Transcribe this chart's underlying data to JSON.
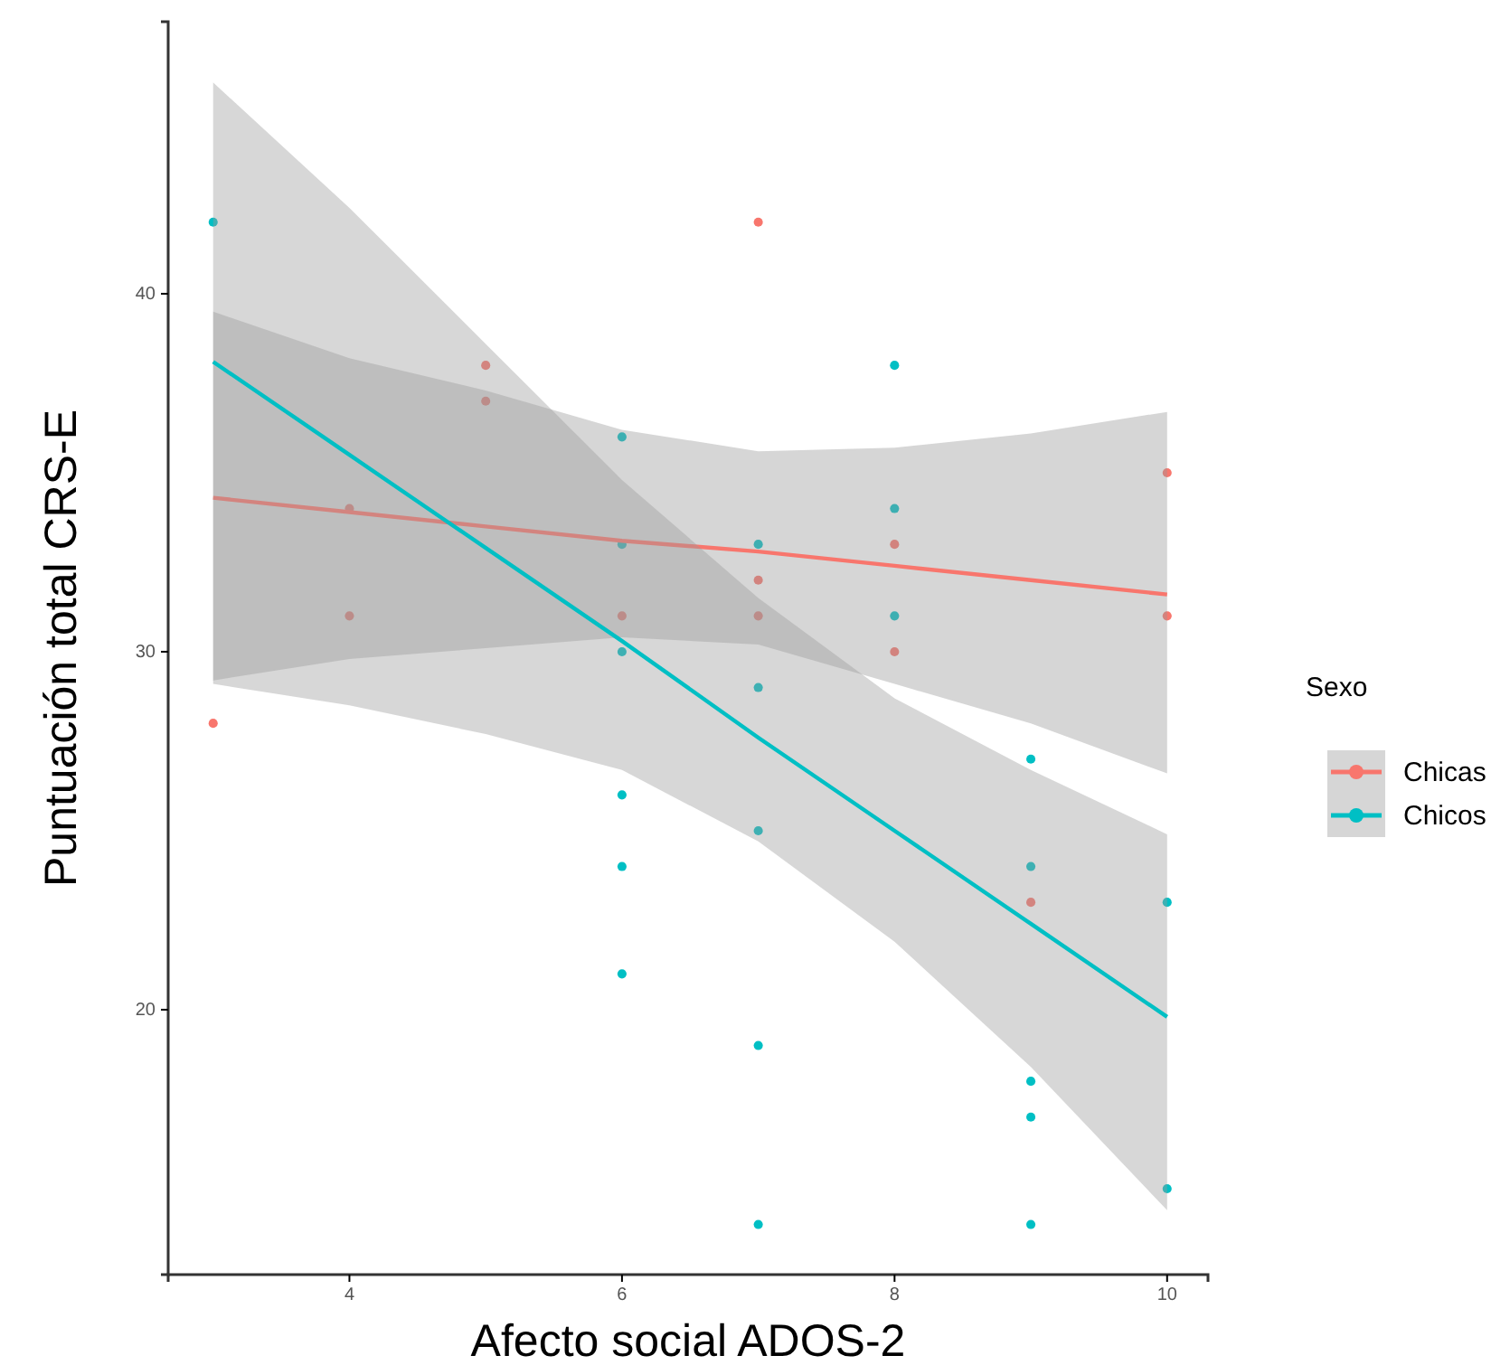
{
  "chart_data": {
    "type": "scatter",
    "xlabel": "Afecto social ADOS-2",
    "ylabel": "Puntuación total CRS-E",
    "legend_title": "Sexo",
    "legend": "right",
    "grid": false,
    "marker": "circle",
    "xlim": [
      2.67,
      10.3
    ],
    "xticks": [
      4,
      6,
      8,
      10
    ],
    "ylim": [
      12.6,
      47.6
    ],
    "yticks": [
      20,
      30,
      40
    ],
    "series": [
      {
        "name": "Chicas",
        "color": "#f8766d",
        "x": [
          3,
          4,
          4,
          5,
          5,
          6,
          7,
          7,
          7,
          8,
          8,
          9,
          10,
          10
        ],
        "values": [
          28,
          34,
          31,
          38,
          37,
          31,
          42,
          32,
          31,
          33,
          30,
          23,
          35,
          31
        ]
      },
      {
        "name": "Chicos",
        "color": "#00bfc4",
        "x": [
          3,
          6,
          6,
          6,
          6,
          6,
          6,
          7,
          7,
          7,
          7,
          7,
          8,
          8,
          8,
          9,
          9,
          9,
          9,
          9,
          10,
          10
        ],
        "values": [
          42,
          36,
          33,
          30,
          26,
          24,
          21,
          33,
          29,
          25,
          19,
          14,
          38,
          34,
          31,
          27,
          24,
          18,
          17,
          14,
          23,
          15
        ]
      },
      {
        "type": "line",
        "marker": "none",
        "color": "#f8766d",
        "x": [
          3,
          4,
          5,
          6,
          7,
          8,
          9,
          10
        ],
        "values": [
          34.3,
          33.9,
          33.5,
          33.1,
          32.8,
          32.4,
          32.0,
          31.6
        ],
        "lower": [
          29.2,
          29.8,
          30.1,
          30.4,
          30.2,
          29.1,
          28.0,
          26.6
        ],
        "upper": [
          39.5,
          38.2,
          37.3,
          36.2,
          35.6,
          35.7,
          36.1,
          36.7
        ]
      },
      {
        "type": "line",
        "marker": "none",
        "color": "#00bfc4",
        "x": [
          3,
          4,
          5,
          6,
          7,
          8,
          9,
          10
        ],
        "values": [
          38.1,
          35.5,
          32.9,
          30.3,
          27.6,
          25.0,
          22.4,
          19.8
        ],
        "lower": [
          29.1,
          28.5,
          27.7,
          26.7,
          24.7,
          21.9,
          18.4,
          14.4
        ],
        "upper": [
          45.9,
          42.4,
          38.6,
          34.8,
          31.5,
          28.7,
          26.7,
          24.9
        ]
      }
    ]
  }
}
